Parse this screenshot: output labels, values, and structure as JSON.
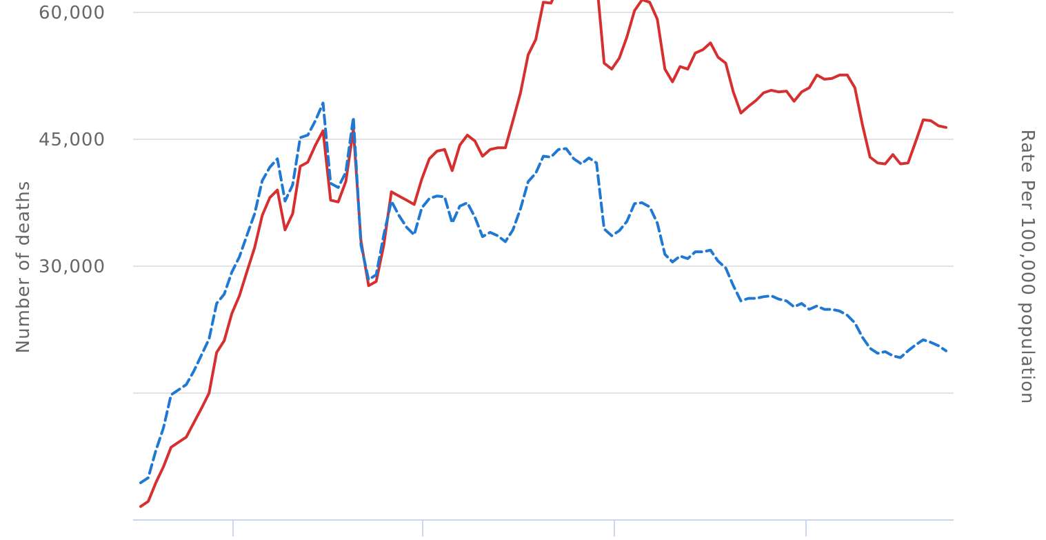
{
  "chart_data": {
    "type": "line",
    "yaxis_left": {
      "title": "Number of deaths",
      "ticks": [
        {
          "value": 15000,
          "label": ""
        },
        {
          "value": 30000,
          "label": "30,000"
        },
        {
          "value": 45000,
          "label": "45,000"
        },
        {
          "value": 60000,
          "label": "60,000"
        }
      ],
      "range": [
        0,
        60000
      ]
    },
    "yaxis_right": {
      "title": "Rate Per 100,000 population"
    },
    "x_count": 107,
    "grid": true,
    "series": [
      {
        "color": "#d62f2f",
        "dash": "solid",
        "values": [
          1600,
          2200,
          4400,
          6300,
          8600,
          9200,
          9800,
          11500,
          13200,
          15000,
          19800,
          21200,
          24400,
          26500,
          29400,
          32200,
          36000,
          38100,
          39000,
          34300,
          36200,
          41800,
          42300,
          44300,
          46000,
          37800,
          37600,
          40000,
          46200,
          33000,
          27700,
          28200,
          32500,
          38800,
          38300,
          37800,
          37300,
          40300,
          42700,
          43600,
          43800,
          41300,
          44300,
          45500,
          44800,
          43000,
          43800,
          44000,
          44000,
          47200,
          50500,
          55000,
          56800,
          61200,
          61100,
          63000,
          64000,
          62900,
          62800,
          64500,
          63900,
          54000,
          53300,
          54600,
          57100,
          60200,
          61500,
          61200,
          59200,
          53300,
          51800,
          53600,
          53300,
          55200,
          55600,
          56400,
          54700,
          54000,
          50600,
          48100,
          48900,
          49600,
          50500,
          50800,
          50600,
          50700,
          49500,
          50600,
          51100,
          52600,
          52100,
          52200,
          52600,
          52600,
          51100,
          46700,
          42900,
          42200,
          42100,
          43200,
          42100,
          42200,
          44700,
          47300,
          47200,
          46600,
          46400
        ]
      },
      {
        "color": "#1f78d1",
        "dash": "dashed",
        "values": [
          4400,
          5000,
          8200,
          10900,
          14800,
          15400,
          16000,
          17600,
          19500,
          21400,
          25600,
          26700,
          29300,
          31100,
          33700,
          36200,
          40100,
          41700,
          42700,
          37700,
          39600,
          45200,
          45500,
          47200,
          49300,
          39800,
          39300,
          41100,
          47600,
          32500,
          28400,
          29000,
          33700,
          37700,
          36000,
          34600,
          33700,
          36900,
          38000,
          38300,
          38200,
          35100,
          37100,
          37500,
          35800,
          33500,
          34000,
          33600,
          32900,
          34300,
          36800,
          40000,
          41000,
          43000,
          42900,
          43800,
          43900,
          42700,
          42100,
          42800,
          42200,
          34400,
          33600,
          34200,
          35300,
          37400,
          37500,
          37000,
          35100,
          31400,
          30500,
          31200,
          30900,
          31700,
          31700,
          31900,
          30600,
          29800,
          27700,
          25900,
          26200,
          26200,
          26400,
          26500,
          26100,
          25900,
          25200,
          25600,
          24900,
          25300,
          24900,
          24900,
          24700,
          24200,
          23300,
          21600,
          20300,
          19700,
          19900,
          19400,
          19200,
          20000,
          20700,
          21300,
          21000,
          20600,
          20000
        ]
      }
    ]
  }
}
